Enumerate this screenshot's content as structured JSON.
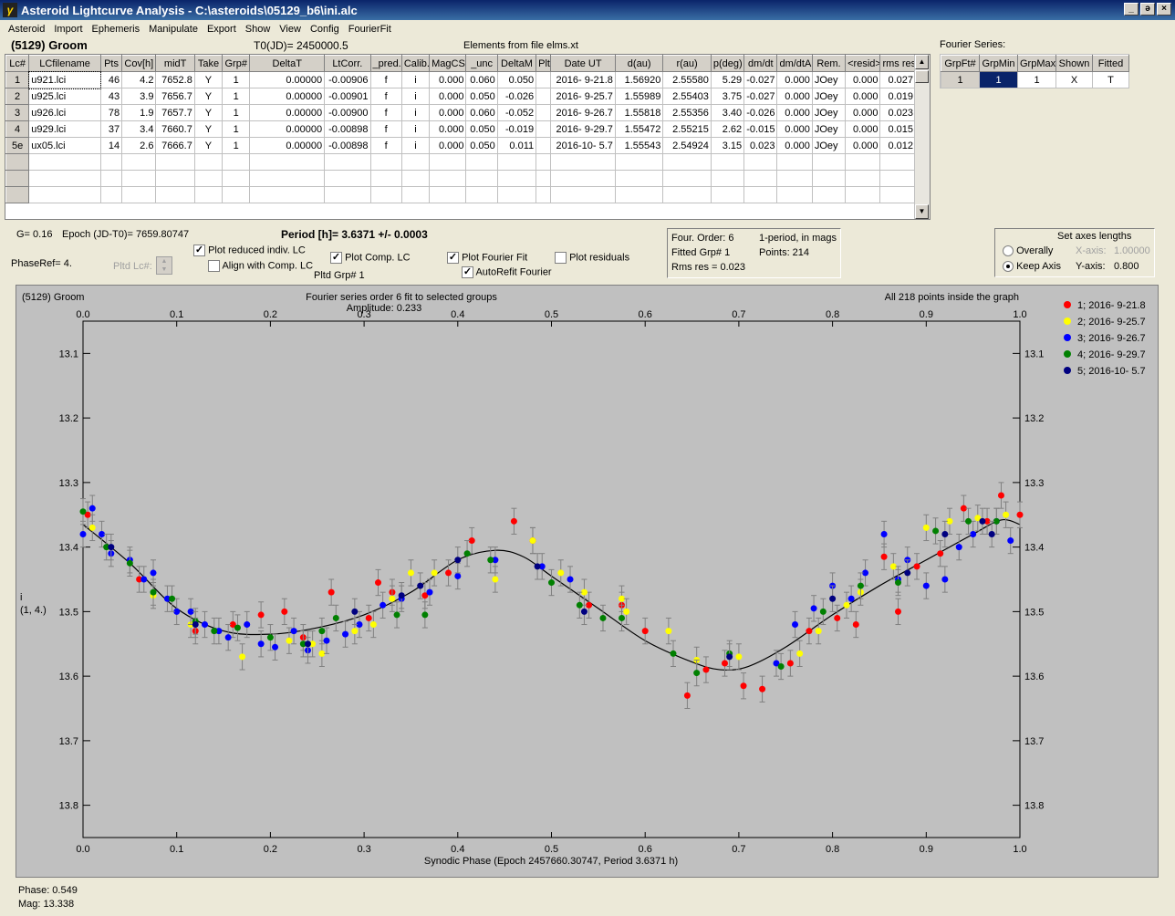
{
  "window": {
    "title": "Asteroid Lightcurve Analysis - C:\\asteroids\\05129_b6\\ini.alc",
    "minimize": "_",
    "maximize": "ə",
    "close": "×"
  },
  "menu": [
    "Asteroid",
    "Import",
    "Ephemeris",
    "Manipulate",
    "Export",
    "Show",
    "View",
    "Config",
    "FourierFit"
  ],
  "header": {
    "asteroid": "(5129) Groom",
    "t0": "T0(JD)= 2450000.5",
    "elements": "Elements from file elms.xt"
  },
  "lc_table": {
    "columns": [
      "Lc#",
      "LCfilename",
      "Pts",
      "Cov[h]",
      "midT",
      "Take",
      "Grp#",
      "DeltaT",
      "LtCorr.",
      "_pred.",
      "Calib.",
      "MagCS",
      "_unc",
      "DeltaM",
      "Plt",
      "Date UT",
      "d(au)",
      "r(au)",
      "p(deg)",
      "dm/dt",
      "dm/dtA",
      "Rem.",
      "<resid>",
      "rms res"
    ],
    "rows": [
      [
        "1",
        "u921.lci",
        "46",
        "4.2",
        "7652.8",
        "Y",
        "1",
        "0.00000",
        "-0.00906",
        "f",
        "i",
        "0.000",
        "0.060",
        "0.050",
        "",
        "2016- 9-21.8",
        "1.56920",
        "2.55580",
        "5.29",
        "-0.027",
        "0.000",
        "JOey",
        "0.000",
        "0.027"
      ],
      [
        "2",
        "u925.lci",
        "43",
        "3.9",
        "7656.7",
        "Y",
        "1",
        "0.00000",
        "-0.00901",
        "f",
        "i",
        "0.000",
        "0.050",
        "-0.026",
        "",
        "2016- 9-25.7",
        "1.55989",
        "2.55403",
        "3.75",
        "-0.027",
        "0.000",
        "JOey",
        "0.000",
        "0.019"
      ],
      [
        "3",
        "u926.lci",
        "78",
        "1.9",
        "7657.7",
        "Y",
        "1",
        "0.00000",
        "-0.00900",
        "f",
        "i",
        "0.000",
        "0.060",
        "-0.052",
        "",
        "2016- 9-26.7",
        "1.55818",
        "2.55356",
        "3.40",
        "-0.026",
        "0.000",
        "JOey",
        "0.000",
        "0.023"
      ],
      [
        "4",
        "u929.lci",
        "37",
        "3.4",
        "7660.7",
        "Y",
        "1",
        "0.00000",
        "-0.00898",
        "f",
        "i",
        "0.000",
        "0.050",
        "-0.019",
        "",
        "2016- 9-29.7",
        "1.55472",
        "2.55215",
        "2.62",
        "-0.015",
        "0.000",
        "JOey",
        "0.000",
        "0.015"
      ],
      [
        "5e",
        "ux05.lci",
        "14",
        "2.6",
        "7666.7",
        "Y",
        "1",
        "0.00000",
        "-0.00898",
        "f",
        "i",
        "0.000",
        "0.050",
        "0.011",
        "",
        "2016-10- 5.7",
        "1.55543",
        "2.54924",
        "3.15",
        "0.023",
        "0.000",
        "JOey",
        "0.000",
        "0.012"
      ]
    ]
  },
  "fourier_table": {
    "title": "Fourier Series:",
    "columns": [
      "GrpFt#",
      "GrpMin",
      "GrpMax",
      "Shown",
      "Fitted"
    ],
    "rows": [
      [
        "1",
        "1",
        "1",
        "X",
        "T"
      ]
    ]
  },
  "info": {
    "g": "G= 0.16",
    "epoch": "Epoch (JD-T0)= 7659.80747",
    "period": "Period [h]= 3.6371 +/- 0.0003",
    "phaseref": "PhaseRef= 4.",
    "pltd_lc": "Pltd Lc#:",
    "pltd_grp": "Pltd Grp#  1"
  },
  "options": {
    "plot_reduced": "Plot reduced indiv. LC",
    "align": "Align with Comp. LC",
    "plot_comp": "Plot Comp. LC",
    "plot_fourier": "Plot Fourier Fit",
    "autorefit": "AutoRefit Fourier",
    "plot_residuals": "Plot residuals"
  },
  "fit_info": {
    "order": "Four. Order:  6",
    "fitted": "Fitted Grp# 1",
    "rms": "Rms res     = 0.023",
    "mode": "1-period, in mags",
    "points": "Points: 214"
  },
  "axes_box": {
    "title": "Set axes lengths",
    "overally": "Overally",
    "keep": "Keep Axis",
    "xaxis_label": "X-axis:",
    "xaxis_val": "1.00000",
    "yaxis_label": "Y-axis:",
    "yaxis_val": "0.800"
  },
  "plot_text": {
    "name": "(5129) Groom",
    "fit_title": "Fourier series order 6 fit to selected groups",
    "amplitude": "Amplitude: 0.233",
    "inside": "All 218 points inside the graph",
    "ylab1": "i",
    "ylab2": "(1, 4.)",
    "xlabel": "Synodic Phase (Epoch 2457660.30747, Period 3.6371 h)"
  },
  "status": {
    "phase": "Phase:  0.549",
    "mag": "Mag:   13.338"
  },
  "chart_data": {
    "type": "scatter",
    "x_ticks": [
      "0.0",
      "0.1",
      "0.2",
      "0.3",
      "0.4",
      "0.5",
      "0.6",
      "0.7",
      "0.8",
      "0.9",
      "1.0"
    ],
    "y_ticks": [
      "13.1",
      "13.2",
      "13.3",
      "13.4",
      "13.5",
      "13.6",
      "13.7",
      "13.8"
    ],
    "xlim": [
      0,
      1
    ],
    "ylim": [
      13.05,
      13.85
    ],
    "y_inverted": true,
    "series": [
      {
        "name": "1; 2016- 9-21.8",
        "color": "#ff0000",
        "points": [
          [
            0.005,
            13.35
          ],
          [
            0.06,
            13.45
          ],
          [
            0.12,
            13.53
          ],
          [
            0.16,
            13.52
          ],
          [
            0.19,
            13.505
          ],
          [
            0.215,
            13.5
          ],
          [
            0.235,
            13.54
          ],
          [
            0.265,
            13.47
          ],
          [
            0.305,
            13.51
          ],
          [
            0.315,
            13.455
          ],
          [
            0.33,
            13.47
          ],
          [
            0.365,
            13.475
          ],
          [
            0.39,
            13.44
          ],
          [
            0.415,
            13.39
          ],
          [
            0.46,
            13.36
          ],
          [
            0.48,
            13.39
          ],
          [
            0.54,
            13.49
          ],
          [
            0.575,
            13.49
          ],
          [
            0.6,
            13.53
          ],
          [
            0.645,
            13.63
          ],
          [
            0.665,
            13.59
          ],
          [
            0.685,
            13.58
          ],
          [
            0.705,
            13.615
          ],
          [
            0.725,
            13.62
          ],
          [
            0.755,
            13.58
          ],
          [
            0.775,
            13.53
          ],
          [
            0.805,
            13.51
          ],
          [
            0.825,
            13.52
          ],
          [
            0.855,
            13.415
          ],
          [
            0.87,
            13.5
          ],
          [
            0.89,
            13.43
          ],
          [
            0.915,
            13.41
          ],
          [
            0.94,
            13.34
          ],
          [
            0.965,
            13.36
          ],
          [
            0.98,
            13.32
          ],
          [
            1.0,
            13.35
          ]
        ]
      },
      {
        "name": "2; 2016- 9-25.7",
        "color": "#ffff00",
        "points": [
          [
            0.01,
            13.37
          ],
          [
            0.075,
            13.475
          ],
          [
            0.115,
            13.52
          ],
          [
            0.17,
            13.57
          ],
          [
            0.22,
            13.545
          ],
          [
            0.245,
            13.55
          ],
          [
            0.255,
            13.565
          ],
          [
            0.29,
            13.53
          ],
          [
            0.31,
            13.52
          ],
          [
            0.33,
            13.48
          ],
          [
            0.35,
            13.44
          ],
          [
            0.375,
            13.44
          ],
          [
            0.44,
            13.45
          ],
          [
            0.48,
            13.39
          ],
          [
            0.51,
            13.44
          ],
          [
            0.535,
            13.47
          ],
          [
            0.575,
            13.48
          ],
          [
            0.58,
            13.5
          ],
          [
            0.625,
            13.53
          ],
          [
            0.655,
            13.575
          ],
          [
            0.7,
            13.57
          ],
          [
            0.765,
            13.565
          ],
          [
            0.785,
            13.53
          ],
          [
            0.815,
            13.49
          ],
          [
            0.83,
            13.47
          ],
          [
            0.865,
            13.43
          ],
          [
            0.9,
            13.37
          ],
          [
            0.925,
            13.36
          ],
          [
            0.955,
            13.355
          ],
          [
            0.985,
            13.35
          ]
        ]
      },
      {
        "name": "3; 2016- 9-26.7",
        "color": "#0000ff",
        "points": [
          [
            0.0,
            13.38
          ],
          [
            0.01,
            13.34
          ],
          [
            0.02,
            13.38
          ],
          [
            0.03,
            13.41
          ],
          [
            0.05,
            13.42
          ],
          [
            0.065,
            13.45
          ],
          [
            0.075,
            13.44
          ],
          [
            0.09,
            13.48
          ],
          [
            0.1,
            13.5
          ],
          [
            0.115,
            13.5
          ],
          [
            0.13,
            13.52
          ],
          [
            0.145,
            13.53
          ],
          [
            0.155,
            13.54
          ],
          [
            0.175,
            13.52
          ],
          [
            0.19,
            13.55
          ],
          [
            0.205,
            13.555
          ],
          [
            0.225,
            13.53
          ],
          [
            0.24,
            13.56
          ],
          [
            0.26,
            13.545
          ],
          [
            0.28,
            13.535
          ],
          [
            0.295,
            13.52
          ],
          [
            0.32,
            13.49
          ],
          [
            0.34,
            13.48
          ],
          [
            0.37,
            13.47
          ],
          [
            0.4,
            13.445
          ],
          [
            0.44,
            13.42
          ],
          [
            0.49,
            13.43
          ],
          [
            0.52,
            13.45
          ],
          [
            0.74,
            13.58
          ],
          [
            0.76,
            13.52
          ],
          [
            0.78,
            13.495
          ],
          [
            0.8,
            13.46
          ],
          [
            0.82,
            13.48
          ],
          [
            0.835,
            13.44
          ],
          [
            0.855,
            13.38
          ],
          [
            0.87,
            13.45
          ],
          [
            0.88,
            13.42
          ],
          [
            0.9,
            13.46
          ],
          [
            0.92,
            13.45
          ],
          [
            0.935,
            13.4
          ],
          [
            0.95,
            13.38
          ],
          [
            0.975,
            13.36
          ],
          [
            0.99,
            13.39
          ]
        ]
      },
      {
        "name": "4; 2016- 9-29.7",
        "color": "#008000",
        "points": [
          [
            0.0,
            13.345
          ],
          [
            0.025,
            13.4
          ],
          [
            0.05,
            13.425
          ],
          [
            0.075,
            13.47
          ],
          [
            0.095,
            13.48
          ],
          [
            0.12,
            13.515
          ],
          [
            0.14,
            13.53
          ],
          [
            0.165,
            13.525
          ],
          [
            0.2,
            13.54
          ],
          [
            0.235,
            13.55
          ],
          [
            0.255,
            13.53
          ],
          [
            0.27,
            13.51
          ],
          [
            0.335,
            13.505
          ],
          [
            0.365,
            13.505
          ],
          [
            0.41,
            13.41
          ],
          [
            0.435,
            13.42
          ],
          [
            0.5,
            13.455
          ],
          [
            0.53,
            13.49
          ],
          [
            0.555,
            13.51
          ],
          [
            0.575,
            13.51
          ],
          [
            0.63,
            13.565
          ],
          [
            0.655,
            13.595
          ],
          [
            0.69,
            13.565
          ],
          [
            0.745,
            13.585
          ],
          [
            0.79,
            13.5
          ],
          [
            0.83,
            13.46
          ],
          [
            0.87,
            13.455
          ],
          [
            0.91,
            13.375
          ],
          [
            0.945,
            13.36
          ],
          [
            0.975,
            13.36
          ]
        ]
      },
      {
        "name": "5; 2016-10- 5.7",
        "color": "#000080",
        "points": [
          [
            0.03,
            13.4
          ],
          [
            0.12,
            13.52
          ],
          [
            0.24,
            13.55
          ],
          [
            0.29,
            13.5
          ],
          [
            0.34,
            13.475
          ],
          [
            0.36,
            13.46
          ],
          [
            0.4,
            13.42
          ],
          [
            0.485,
            13.43
          ],
          [
            0.535,
            13.5
          ],
          [
            0.69,
            13.57
          ],
          [
            0.8,
            13.48
          ],
          [
            0.88,
            13.44
          ],
          [
            0.92,
            13.38
          ],
          [
            0.96,
            13.36
          ],
          [
            0.97,
            13.38
          ]
        ]
      }
    ],
    "fit_curve": [
      [
        0.0,
        13.365
      ],
      [
        0.05,
        13.425
      ],
      [
        0.1,
        13.495
      ],
      [
        0.15,
        13.53
      ],
      [
        0.2,
        13.535
      ],
      [
        0.25,
        13.525
      ],
      [
        0.3,
        13.505
      ],
      [
        0.35,
        13.47
      ],
      [
        0.4,
        13.42
      ],
      [
        0.44,
        13.405
      ],
      [
        0.47,
        13.415
      ],
      [
        0.5,
        13.445
      ],
      [
        0.55,
        13.495
      ],
      [
        0.6,
        13.545
      ],
      [
        0.65,
        13.578
      ],
      [
        0.68,
        13.59
      ],
      [
        0.71,
        13.585
      ],
      [
        0.75,
        13.555
      ],
      [
        0.8,
        13.505
      ],
      [
        0.85,
        13.46
      ],
      [
        0.9,
        13.42
      ],
      [
        0.95,
        13.38
      ],
      [
        0.98,
        13.358
      ],
      [
        1.0,
        13.365
      ]
    ]
  }
}
